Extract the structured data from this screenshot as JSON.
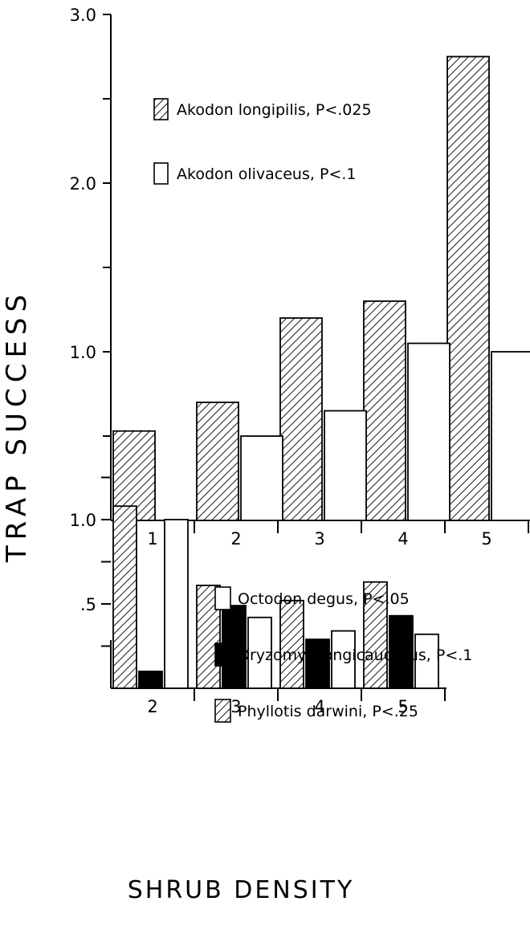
{
  "y_axis_label": "TRAP SUCCESS",
  "x_axis_label": "SHRUB DENSITY",
  "chart_data": [
    {
      "type": "bar",
      "name": "top-panel",
      "categories": [
        "1",
        "2",
        "3",
        "4",
        "5"
      ],
      "ylim": [
        0,
        3.0
      ],
      "yticks": [
        {
          "value": 0.5,
          "label": ""
        },
        {
          "value": 1.0,
          "label": "1.0"
        },
        {
          "value": 1.5,
          "label": ""
        },
        {
          "value": 2.0,
          "label": "2.0"
        },
        {
          "value": 2.5,
          "label": ""
        },
        {
          "value": 3.0,
          "label": "3.0"
        }
      ],
      "legend_position": "top-center",
      "series": [
        {
          "name": "Akodon longipilis, P<.025",
          "pattern": "hatched",
          "values": [
            0.53,
            0.7,
            1.2,
            1.3,
            2.75
          ]
        },
        {
          "name": "Akodon olivaceus, P<.1",
          "pattern": "white",
          "values": [
            0,
            0.5,
            0.65,
            1.05,
            1.0
          ]
        }
      ]
    },
    {
      "type": "bar",
      "name": "bottom-panel",
      "categories": [
        "2",
        "3",
        "4",
        "5"
      ],
      "ylim": [
        0,
        1.25
      ],
      "yticks": [
        {
          "value": 0.25,
          "label": ""
        },
        {
          "value": 0.5,
          "label": ".5"
        },
        {
          "value": 0.75,
          "label": ""
        },
        {
          "value": 1.0,
          "label": "1.0"
        },
        {
          "value": 1.25,
          "label": ""
        }
      ],
      "legend_position": "top-right",
      "series": [
        {
          "name": "Phyllotis darwini, P<.25",
          "pattern": "hatched",
          "values": [
            1.08,
            0.61,
            0.52,
            0.63
          ]
        },
        {
          "name": "Oryzomys longicaudatus, P<.1",
          "pattern": "black",
          "values": [
            0.1,
            0.49,
            0.29,
            0.43
          ]
        },
        {
          "name": "Octodon degus, P<.05",
          "pattern": "white",
          "values": [
            1.0,
            0.42,
            0.34,
            0.32
          ]
        }
      ],
      "legend_order": [
        "Octodon degus, P<.05",
        "Oryzomys longicaudatus, P<.1",
        "Phyllotis darwini, P<.25"
      ]
    }
  ]
}
